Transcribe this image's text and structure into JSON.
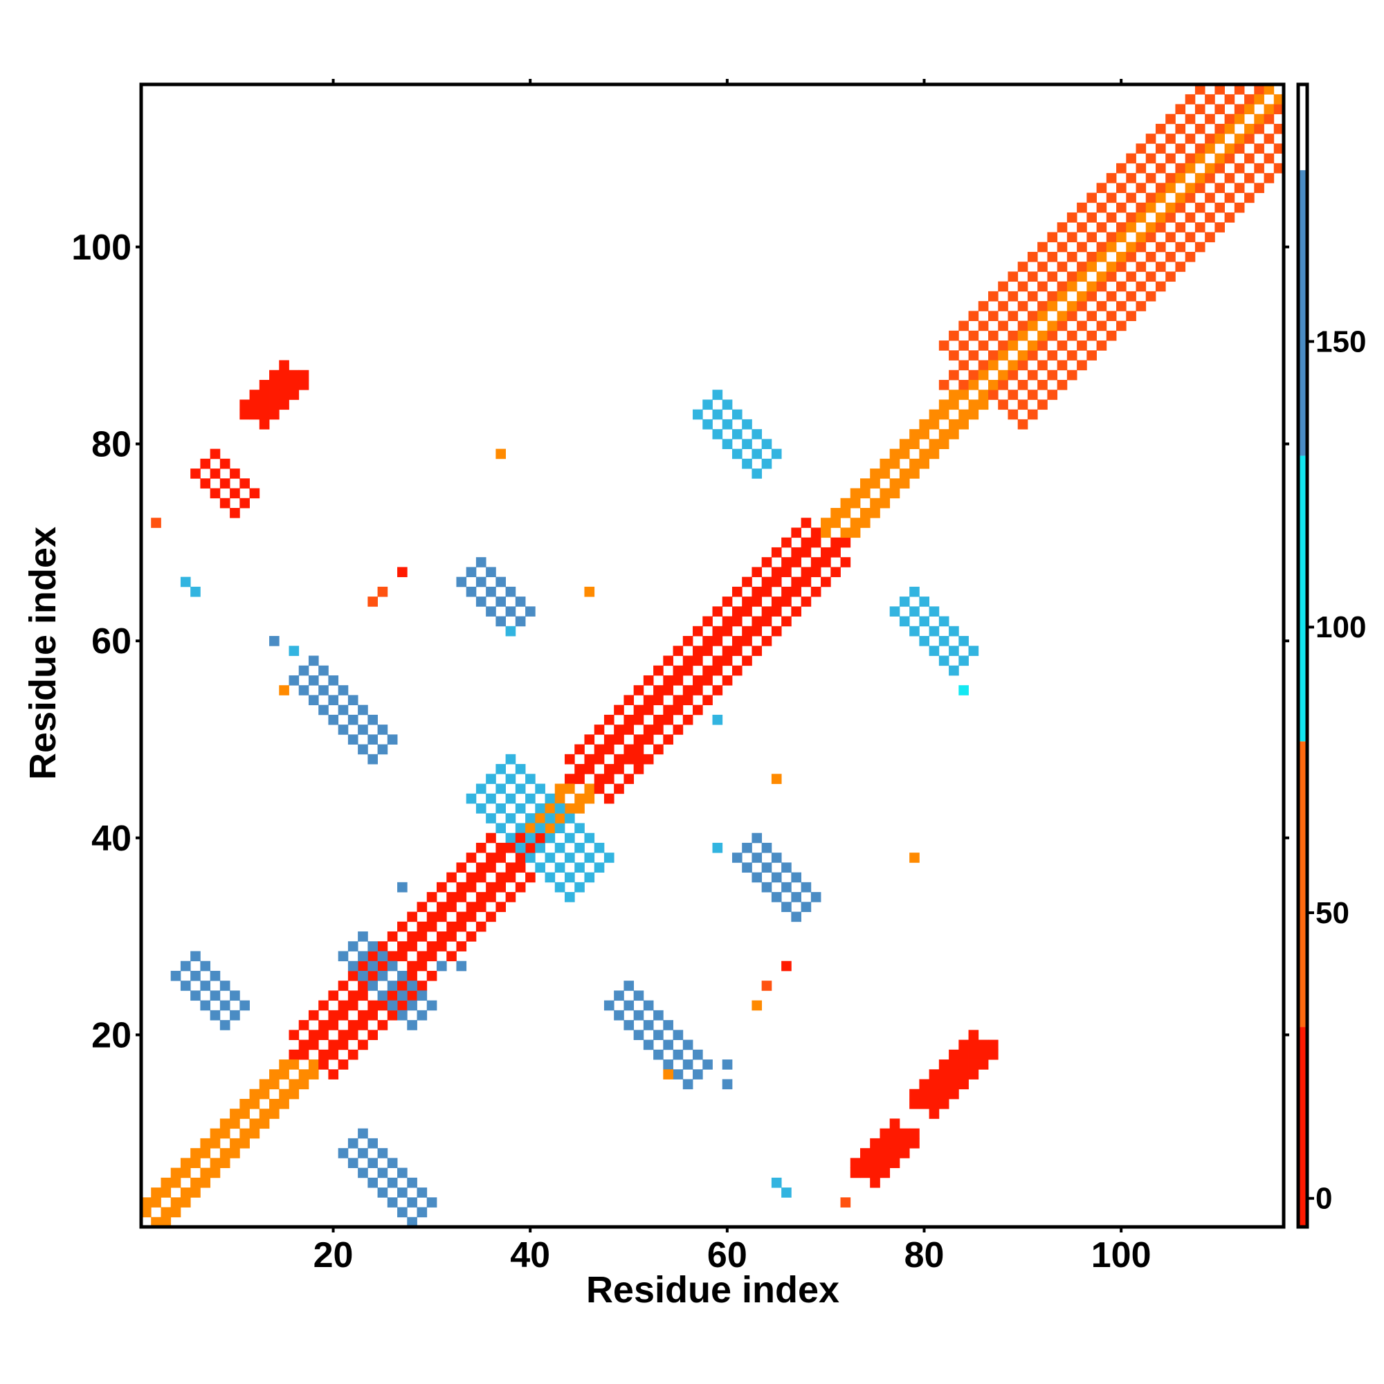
{
  "chart_data": {
    "type": "heatmap",
    "title": "",
    "xlabel": "Residue index",
    "ylabel": "Residue index",
    "xlim": [
      1,
      116
    ],
    "ylim": [
      1,
      116
    ],
    "x_ticks": [
      20,
      40,
      60,
      80,
      100
    ],
    "y_ticks": [
      20,
      40,
      60,
      80,
      100
    ],
    "x_tick_labels": [
      "20",
      "40",
      "60",
      "80",
      "100"
    ],
    "y_tick_labels": [
      "20",
      "40",
      "60",
      "80",
      "100"
    ],
    "colorbar": {
      "range": [
        -5,
        195
      ],
      "ticks": [
        0,
        50,
        100,
        150
      ],
      "tick_labels": [
        "0",
        "50",
        "100",
        "150"
      ],
      "bands": [
        {
          "from": -5,
          "to": 30,
          "color": "#ff1a00"
        },
        {
          "from": 30,
          "to": 80,
          "color": "#ff6a10"
        },
        {
          "from": 80,
          "to": 130,
          "color": "#12e6f0"
        },
        {
          "from": 130,
          "to": 180,
          "color": "#4a8cc4"
        },
        {
          "from": 180,
          "to": 195,
          "color": "#ffffff"
        }
      ]
    },
    "value_colors": {
      "1": "#ff1a00",
      "2": "#ff5210",
      "3": "#ff8a00",
      "4": "#14e8f2",
      "5": "#32b4e0",
      "6": "#4a8cc4"
    },
    "segments": [
      {
        "from": [
          1,
          1
        ],
        "to": [
          116,
          116
        ],
        "halfwidth": 1,
        "diag_skip": true,
        "color": 3
      },
      {
        "from": [
          2,
          2
        ],
        "to": [
          116,
          116
        ],
        "halfwidth": 1,
        "diag_skip": true,
        "color": 4,
        "parity": 1
      },
      {
        "from": [
          18,
          18
        ],
        "to": [
          40,
          40
        ],
        "halfwidth": 2,
        "diag_skip": true,
        "color": 1
      },
      {
        "from": [
          46,
          46
        ],
        "to": [
          70,
          70
        ],
        "halfwidth": 2,
        "diag_skip": true,
        "color": 1
      },
      {
        "from": [
          86,
          86
        ],
        "to": [
          116,
          116
        ],
        "halfwidth": 4,
        "diag_skip": true,
        "color": 2,
        "parity": 0
      },
      {
        "from": [
          92,
          92
        ],
        "to": [
          116,
          116
        ],
        "halfwidth": 5,
        "diag_skip": true,
        "color": 4,
        "parity": 1
      },
      {
        "from": [
          22,
          29
        ],
        "to": [
          29,
          22
        ],
        "halfwidth": 1,
        "color": 6
      },
      {
        "from": [
          5,
          27
        ],
        "to": [
          10,
          22
        ],
        "halfwidth": 1,
        "color": 6
      },
      {
        "from": [
          22,
          9
        ],
        "to": [
          29,
          2
        ],
        "halfwidth": 1,
        "color": 6
      },
      {
        "from": [
          17,
          57
        ],
        "to": [
          24,
          49
        ],
        "halfwidth": 1,
        "color": 6
      },
      {
        "from": [
          49,
          24
        ],
        "to": [
          57,
          17
        ],
        "halfwidth": 1,
        "color": 6
      },
      {
        "from": [
          34,
          67
        ],
        "to": [
          39,
          62
        ],
        "halfwidth": 1,
        "color": 6
      },
      {
        "from": [
          62,
          39
        ],
        "to": [
          68,
          33
        ],
        "halfwidth": 1,
        "color": 6
      },
      {
        "from": [
          36,
          46
        ],
        "to": [
          46,
          36
        ],
        "halfwidth": 2,
        "color": 5
      },
      {
        "from": [
          58,
          84
        ],
        "to": [
          64,
          78
        ],
        "halfwidth": 1,
        "color": 5
      },
      {
        "from": [
          78,
          64
        ],
        "to": [
          84,
          58
        ],
        "halfwidth": 1,
        "color": 5
      },
      {
        "from": [
          7,
          78
        ],
        "to": [
          11,
          74
        ],
        "halfwidth": 1,
        "color": 1
      },
      {
        "from": [
          12,
          83
        ],
        "to": [
          16,
          86
        ],
        "halfwidth": 1,
        "color": 1
      },
      {
        "from": [
          74,
          6
        ],
        "to": [
          78,
          8
        ],
        "halfwidth": 1,
        "color": 1
      },
      {
        "from": [
          80,
          13
        ],
        "to": [
          86,
          17
        ],
        "halfwidth": 1,
        "color": 1
      }
    ],
    "cells": [
      {
        "x": 2,
        "y": 72,
        "v": 2
      },
      {
        "x": 5,
        "y": 66,
        "v": 5
      },
      {
        "x": 6,
        "y": 65,
        "v": 5
      },
      {
        "x": 14,
        "y": 60,
        "v": 6
      },
      {
        "x": 16,
        "y": 59,
        "v": 5
      },
      {
        "x": 15,
        "y": 55,
        "v": 3
      },
      {
        "x": 24,
        "y": 64,
        "v": 2
      },
      {
        "x": 25,
        "y": 65,
        "v": 2
      },
      {
        "x": 27,
        "y": 67,
        "v": 1
      },
      {
        "x": 37,
        "y": 79,
        "v": 3
      },
      {
        "x": 46,
        "y": 65,
        "v": 3
      },
      {
        "x": 38,
        "y": 61,
        "v": 5
      },
      {
        "x": 27,
        "y": 35,
        "v": 6
      },
      {
        "x": 31,
        "y": 27,
        "v": 6
      },
      {
        "x": 33,
        "y": 27,
        "v": 6
      },
      {
        "x": 65,
        "y": 46,
        "v": 3
      },
      {
        "x": 79,
        "y": 38,
        "v": 3
      },
      {
        "x": 59,
        "y": 39,
        "v": 5
      },
      {
        "x": 64,
        "y": 25,
        "v": 2
      },
      {
        "x": 66,
        "y": 27,
        "v": 1
      },
      {
        "x": 63,
        "y": 23,
        "v": 3
      },
      {
        "x": 72,
        "y": 3,
        "v": 2
      },
      {
        "x": 60,
        "y": 17,
        "v": 6
      },
      {
        "x": 60,
        "y": 15,
        "v": 6
      },
      {
        "x": 65,
        "y": 5,
        "v": 5
      },
      {
        "x": 66,
        "y": 4,
        "v": 5
      },
      {
        "x": 84,
        "y": 55,
        "v": 4
      },
      {
        "x": 54,
        "y": 16,
        "v": 3
      },
      {
        "x": 59,
        "y": 52,
        "v": 5
      },
      {
        "x": 51,
        "y": 48,
        "v": 1
      }
    ]
  }
}
